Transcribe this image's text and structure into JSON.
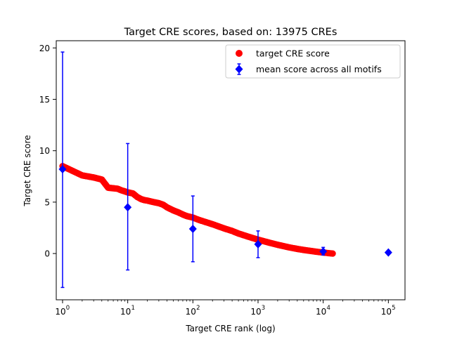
{
  "chart_data": {
    "type": "scatter",
    "title": "Target CRE scores, based on: 13975 CREs",
    "xlabel": "Target CRE rank (log)",
    "ylabel": "Target CRE score",
    "xscale": "log",
    "xlim": [
      0.8,
      180000
    ],
    "ylim": [
      -4.5,
      20.7
    ],
    "x_ticks": [
      {
        "value": 1,
        "base": "10",
        "exp": "0"
      },
      {
        "value": 10,
        "base": "10",
        "exp": "1"
      },
      {
        "value": 100,
        "base": "10",
        "exp": "2"
      },
      {
        "value": 1000,
        "base": "10",
        "exp": "3"
      },
      {
        "value": 10000,
        "base": "10",
        "exp": "4"
      },
      {
        "value": 100000,
        "base": "10",
        "exp": "5"
      }
    ],
    "y_ticks": [
      0,
      5,
      10,
      15,
      20
    ],
    "grid": false,
    "legend": {
      "placement": "top-right",
      "entries": [
        "target CRE score",
        "mean score across all motifs"
      ]
    },
    "colors": {
      "target": "#ff0000",
      "mean": "#0000ff"
    },
    "series": [
      {
        "name": "target CRE score",
        "marker": "circle",
        "points": [
          [
            1,
            8.5
          ],
          [
            2,
            7.6
          ],
          [
            3,
            7.4
          ],
          [
            4,
            7.2
          ],
          [
            5,
            6.4
          ],
          [
            6,
            6.35
          ],
          [
            7,
            6.3
          ],
          [
            8,
            6.15
          ],
          [
            9,
            6.05
          ],
          [
            10,
            5.95
          ],
          [
            11,
            5.9
          ],
          [
            12,
            5.85
          ],
          [
            14,
            5.5
          ],
          [
            16,
            5.3
          ],
          [
            18,
            5.2
          ],
          [
            20,
            5.15
          ],
          [
            25,
            5.0
          ],
          [
            30,
            4.9
          ],
          [
            35,
            4.75
          ],
          [
            40,
            4.5
          ],
          [
            50,
            4.2
          ],
          [
            60,
            4.0
          ],
          [
            70,
            3.8
          ],
          [
            80,
            3.65
          ],
          [
            100,
            3.5
          ],
          [
            120,
            3.3
          ],
          [
            150,
            3.1
          ],
          [
            200,
            2.85
          ],
          [
            300,
            2.45
          ],
          [
            400,
            2.2
          ],
          [
            500,
            1.95
          ],
          [
            700,
            1.65
          ],
          [
            1000,
            1.35
          ],
          [
            1500,
            1.05
          ],
          [
            2000,
            0.85
          ],
          [
            3000,
            0.6
          ],
          [
            4000,
            0.45
          ],
          [
            5000,
            0.35
          ],
          [
            6000,
            0.28
          ],
          [
            7000,
            0.22
          ],
          [
            8000,
            0.17
          ],
          [
            9000,
            0.13
          ],
          [
            10000,
            0.1
          ],
          [
            11000,
            0.07
          ],
          [
            12000,
            0.04
          ],
          [
            13000,
            0.02
          ],
          [
            13975,
            0.0
          ]
        ]
      },
      {
        "name": "mean score across all motifs",
        "marker": "diamond",
        "points": [
          {
            "x": 1,
            "y": 8.2,
            "ylow": -3.3,
            "yhigh": 19.6
          },
          {
            "x": 10,
            "y": 4.5,
            "ylow": -1.6,
            "yhigh": 10.7
          },
          {
            "x": 100,
            "y": 2.4,
            "ylow": -0.8,
            "yhigh": 5.6
          },
          {
            "x": 1000,
            "y": 0.9,
            "ylow": -0.4,
            "yhigh": 2.2
          },
          {
            "x": 10000,
            "y": 0.2,
            "ylow": -0.15,
            "yhigh": 0.6
          },
          {
            "x": 100000,
            "y": 0.1,
            "ylow": 0.1,
            "yhigh": 0.1
          }
        ]
      }
    ]
  }
}
